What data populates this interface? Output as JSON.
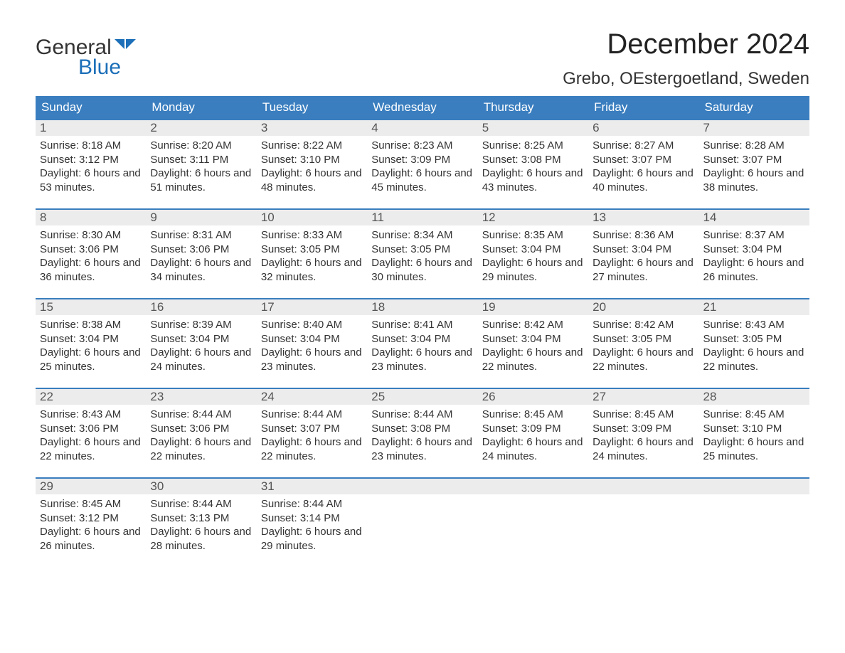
{
  "logo": {
    "word1": "General",
    "word2": "Blue",
    "word1_color": "#333333",
    "word2_color": "#1c6fb8",
    "flag_color": "#1c6fb8"
  },
  "title": "December 2024",
  "location": "Grebo, OEstergoetland, Sweden",
  "colors": {
    "header_bg": "#3a7ebf",
    "header_text": "#ffffff",
    "daynum_bg": "#ececec",
    "daynum_text": "#555555",
    "body_text": "#333333",
    "row_border": "#3a7ebf",
    "page_bg": "#ffffff"
  },
  "day_headers": [
    "Sunday",
    "Monday",
    "Tuesday",
    "Wednesday",
    "Thursday",
    "Friday",
    "Saturday"
  ],
  "weeks": [
    [
      {
        "n": "1",
        "sr": "8:18 AM",
        "ss": "3:12 PM",
        "dl": "6 hours and 53 minutes."
      },
      {
        "n": "2",
        "sr": "8:20 AM",
        "ss": "3:11 PM",
        "dl": "6 hours and 51 minutes."
      },
      {
        "n": "3",
        "sr": "8:22 AM",
        "ss": "3:10 PM",
        "dl": "6 hours and 48 minutes."
      },
      {
        "n": "4",
        "sr": "8:23 AM",
        "ss": "3:09 PM",
        "dl": "6 hours and 45 minutes."
      },
      {
        "n": "5",
        "sr": "8:25 AM",
        "ss": "3:08 PM",
        "dl": "6 hours and 43 minutes."
      },
      {
        "n": "6",
        "sr": "8:27 AM",
        "ss": "3:07 PM",
        "dl": "6 hours and 40 minutes."
      },
      {
        "n": "7",
        "sr": "8:28 AM",
        "ss": "3:07 PM",
        "dl": "6 hours and 38 minutes."
      }
    ],
    [
      {
        "n": "8",
        "sr": "8:30 AM",
        "ss": "3:06 PM",
        "dl": "6 hours and 36 minutes."
      },
      {
        "n": "9",
        "sr": "8:31 AM",
        "ss": "3:06 PM",
        "dl": "6 hours and 34 minutes."
      },
      {
        "n": "10",
        "sr": "8:33 AM",
        "ss": "3:05 PM",
        "dl": "6 hours and 32 minutes."
      },
      {
        "n": "11",
        "sr": "8:34 AM",
        "ss": "3:05 PM",
        "dl": "6 hours and 30 minutes."
      },
      {
        "n": "12",
        "sr": "8:35 AM",
        "ss": "3:04 PM",
        "dl": "6 hours and 29 minutes."
      },
      {
        "n": "13",
        "sr": "8:36 AM",
        "ss": "3:04 PM",
        "dl": "6 hours and 27 minutes."
      },
      {
        "n": "14",
        "sr": "8:37 AM",
        "ss": "3:04 PM",
        "dl": "6 hours and 26 minutes."
      }
    ],
    [
      {
        "n": "15",
        "sr": "8:38 AM",
        "ss": "3:04 PM",
        "dl": "6 hours and 25 minutes."
      },
      {
        "n": "16",
        "sr": "8:39 AM",
        "ss": "3:04 PM",
        "dl": "6 hours and 24 minutes."
      },
      {
        "n": "17",
        "sr": "8:40 AM",
        "ss": "3:04 PM",
        "dl": "6 hours and 23 minutes."
      },
      {
        "n": "18",
        "sr": "8:41 AM",
        "ss": "3:04 PM",
        "dl": "6 hours and 23 minutes."
      },
      {
        "n": "19",
        "sr": "8:42 AM",
        "ss": "3:04 PM",
        "dl": "6 hours and 22 minutes."
      },
      {
        "n": "20",
        "sr": "8:42 AM",
        "ss": "3:05 PM",
        "dl": "6 hours and 22 minutes."
      },
      {
        "n": "21",
        "sr": "8:43 AM",
        "ss": "3:05 PM",
        "dl": "6 hours and 22 minutes."
      }
    ],
    [
      {
        "n": "22",
        "sr": "8:43 AM",
        "ss": "3:06 PM",
        "dl": "6 hours and 22 minutes."
      },
      {
        "n": "23",
        "sr": "8:44 AM",
        "ss": "3:06 PM",
        "dl": "6 hours and 22 minutes."
      },
      {
        "n": "24",
        "sr": "8:44 AM",
        "ss": "3:07 PM",
        "dl": "6 hours and 22 minutes."
      },
      {
        "n": "25",
        "sr": "8:44 AM",
        "ss": "3:08 PM",
        "dl": "6 hours and 23 minutes."
      },
      {
        "n": "26",
        "sr": "8:45 AM",
        "ss": "3:09 PM",
        "dl": "6 hours and 24 minutes."
      },
      {
        "n": "27",
        "sr": "8:45 AM",
        "ss": "3:09 PM",
        "dl": "6 hours and 24 minutes."
      },
      {
        "n": "28",
        "sr": "8:45 AM",
        "ss": "3:10 PM",
        "dl": "6 hours and 25 minutes."
      }
    ],
    [
      {
        "n": "29",
        "sr": "8:45 AM",
        "ss": "3:12 PM",
        "dl": "6 hours and 26 minutes."
      },
      {
        "n": "30",
        "sr": "8:44 AM",
        "ss": "3:13 PM",
        "dl": "6 hours and 28 minutes."
      },
      {
        "n": "31",
        "sr": "8:44 AM",
        "ss": "3:14 PM",
        "dl": "6 hours and 29 minutes."
      },
      null,
      null,
      null,
      null
    ]
  ],
  "labels": {
    "sunrise": "Sunrise:",
    "sunset": "Sunset:",
    "daylight": "Daylight:"
  }
}
